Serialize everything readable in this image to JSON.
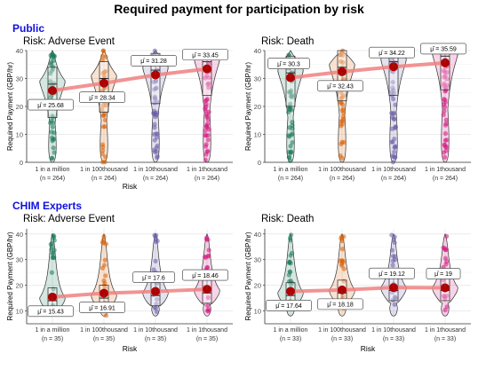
{
  "title": "Required payment for participation by risk",
  "groups": [
    {
      "label": "Public",
      "color": "#1010e0"
    },
    {
      "label": "CHIM Experts",
      "color": "#1010e0"
    }
  ],
  "palette": {
    "categories": [
      "#1b7a5a",
      "#d95f02",
      "#6a5fa8",
      "#d3177f"
    ],
    "mean_line": "#f08080",
    "mean_point": "#b00000",
    "grid": "#ebebeb"
  },
  "chart_data": [
    {
      "type": "violin",
      "group": "Public",
      "title": "Risk: Adverse Event",
      "xlabel": "Risk",
      "ylabel": "Required Payment (GBP/hr)",
      "ylim": [
        0,
        40
      ],
      "yticks": [
        0,
        10,
        20,
        30,
        40
      ],
      "categories": [
        "1 in a million",
        "1 in 100thousand",
        "1 in 10thousand",
        "1 in 1thousand"
      ],
      "n_labels": [
        "(n = 264)",
        "(n = 264)",
        "(n = 264)",
        "(n = 264)"
      ],
      "means": [
        25.68,
        28.34,
        31.28,
        33.45
      ],
      "mean_labels": [
        "μ̂ = 25.68",
        "μ̂ = 28.34",
        "μ̂ = 31.28",
        "μ̂ = 33.45"
      ],
      "medians": [
        28,
        30,
        33,
        36
      ]
    },
    {
      "type": "violin",
      "group": "Public",
      "title": "Risk: Death",
      "xlabel": "",
      "ylabel": "Required Payment (GBP/hr)",
      "ylim": [
        0,
        40
      ],
      "yticks": [
        0,
        10,
        20,
        30,
        40
      ],
      "categories": [
        "1 in a million",
        "1 in 100thousand",
        "1 in 10thousand",
        "1 in 1thousand"
      ],
      "n_labels": [
        "(n = 264)",
        "(n = 264)",
        "(n = 264)",
        "(n = 264)"
      ],
      "means": [
        30.3,
        32.43,
        34.22,
        35.59
      ],
      "mean_labels": [
        "μ̂ = 30.3",
        "μ̂ = 32.43",
        "μ̂ = 34.22",
        "μ̂ = 35.59"
      ],
      "medians": [
        32,
        34,
        36,
        38
      ]
    },
    {
      "type": "violin",
      "group": "CHIM Experts",
      "title": "Risk: Adverse Event",
      "xlabel": "Risk",
      "ylabel": "Required Payment (GBP/hr)",
      "ylim": [
        5,
        42
      ],
      "yticks": [
        10,
        20,
        30,
        40
      ],
      "categories": [
        "1 in a million",
        "1 in 100thousand",
        "1 in 10thousand",
        "1 in 1thousand"
      ],
      "n_labels": [
        "(n = 35)",
        "(n = 35)",
        "(n = 35)",
        "(n = 35)"
      ],
      "means": [
        15.43,
        16.91,
        17.6,
        18.46
      ],
      "mean_labels": [
        "μ̂ = 15.43",
        "μ̂ = 16.91",
        "μ̂ = 17.6",
        "μ̂ = 18.46"
      ],
      "medians": [
        14,
        15,
        16,
        17
      ]
    },
    {
      "type": "violin",
      "group": "CHIM Experts",
      "title": "Risk: Death",
      "xlabel": "Risk",
      "ylabel": "Required Payment (GBP/hr)",
      "ylim": [
        5,
        42
      ],
      "yticks": [
        10,
        20,
        30,
        40
      ],
      "categories": [
        "1 in a million",
        "1 in 100thousand",
        "1 in 10thousand",
        "1 in 1thousand"
      ],
      "n_labels": [
        "(n = 33)",
        "(n = 33)",
        "(n = 33)",
        "(n = 33)"
      ],
      "means": [
        17.64,
        18.18,
        19.12,
        19
      ],
      "mean_labels": [
        "μ̂ = 17.64",
        "μ̂ = 18.18",
        "μ̂ = 19.12",
        "μ̂ = 19"
      ],
      "medians": [
        16,
        17,
        18,
        18
      ]
    }
  ]
}
